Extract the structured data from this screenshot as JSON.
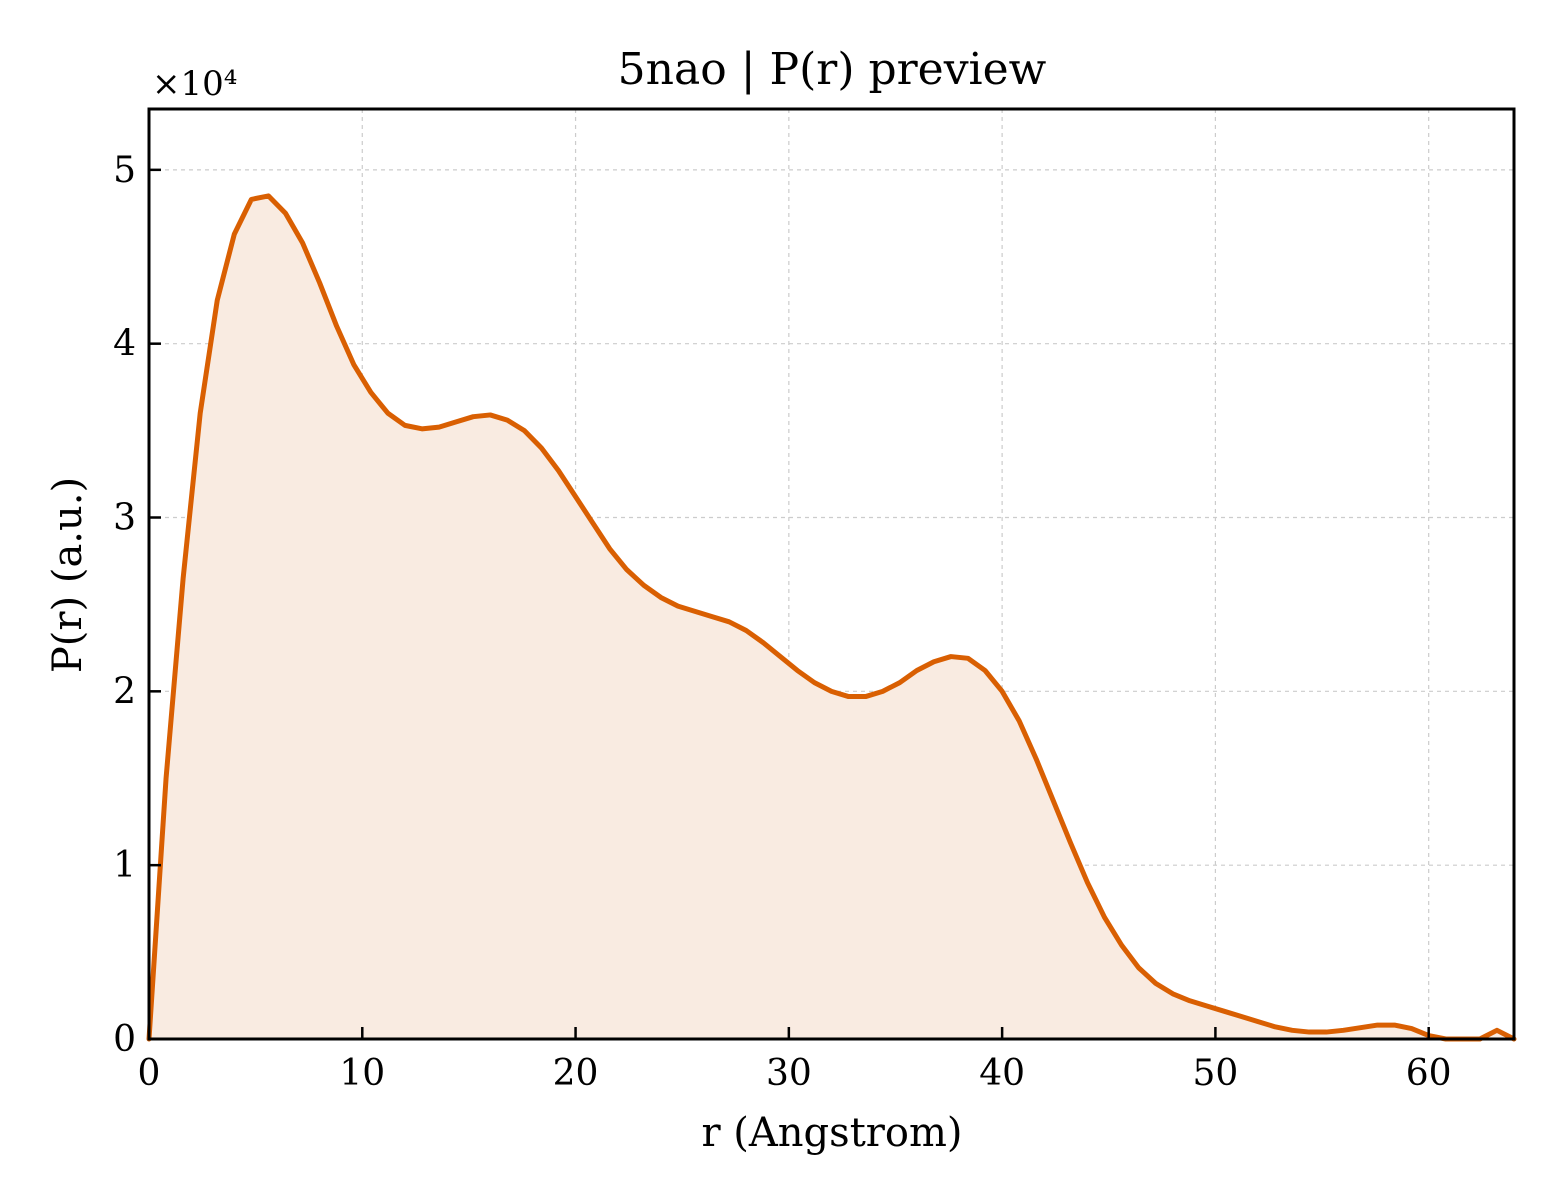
{
  "chart_data": {
    "type": "area",
    "title": "5nao | P(r) preview",
    "xlabel": "r (Angstrom)",
    "ylabel": "P(r) (a.u.)",
    "y_offset_text": "×10⁴",
    "xlim": [
      0,
      64
    ],
    "ylim": [
      0,
      53500
    ],
    "x_ticks": [
      0,
      10,
      20,
      30,
      40,
      50,
      60
    ],
    "y_ticks": [
      0,
      10000,
      20000,
      30000,
      40000,
      50000
    ],
    "y_tick_labels": [
      "0",
      "1",
      "2",
      "3",
      "4",
      "5"
    ],
    "grid": true,
    "line_color": "#d95f02",
    "fill_color": "#f9ebe1",
    "series": [
      {
        "x": [
          0,
          0.8,
          1.6,
          2.4,
          3.2,
          4.0,
          4.8,
          5.6,
          6.4,
          7.2,
          8.0,
          8.8,
          9.6,
          10.4,
          11.2,
          12.0,
          12.8,
          13.6,
          14.4,
          15.2,
          16.0,
          16.8,
          17.6,
          18.4,
          19.2,
          20.0,
          20.8,
          21.6,
          22.4,
          23.2,
          24.0,
          24.8,
          25.6,
          26.4,
          27.2,
          28.0,
          28.8,
          29.6,
          30.4,
          31.2,
          32.0,
          32.8,
          33.6,
          34.4,
          35.2,
          36.0,
          36.8,
          37.6,
          38.4,
          39.2,
          40.0,
          40.8,
          41.6,
          42.4,
          43.2,
          44.0,
          44.8,
          45.6,
          46.4,
          47.2,
          48.0,
          48.8,
          49.6,
          50.4,
          51.2,
          52.0,
          52.8,
          53.6,
          54.4,
          55.2,
          56.0,
          56.8,
          57.6,
          58.4,
          59.2,
          60.0,
          60.8,
          61.6,
          62.4,
          63.2,
          64.0
        ],
        "y": [
          0,
          15000,
          26500,
          36000,
          42500,
          46300,
          48300,
          48500,
          47500,
          45800,
          43500,
          41000,
          38800,
          37200,
          36000,
          35300,
          35100,
          35200,
          35500,
          35800,
          35900,
          35600,
          35000,
          34000,
          32700,
          31200,
          29700,
          28200,
          27000,
          26100,
          25400,
          24900,
          24600,
          24300,
          24000,
          23500,
          22800,
          22000,
          21200,
          20500,
          20000,
          19700,
          19700,
          20000,
          20500,
          21200,
          21700,
          22000,
          21900,
          21200,
          20000,
          18300,
          16100,
          13700,
          11300,
          9000,
          7000,
          5400,
          4100,
          3200,
          2600,
          2200,
          1900,
          1600,
          1300,
          1000,
          700,
          500,
          400,
          400,
          500,
          650,
          800,
          800,
          600,
          200,
          0,
          0,
          0,
          500,
          0
        ]
      }
    ]
  }
}
